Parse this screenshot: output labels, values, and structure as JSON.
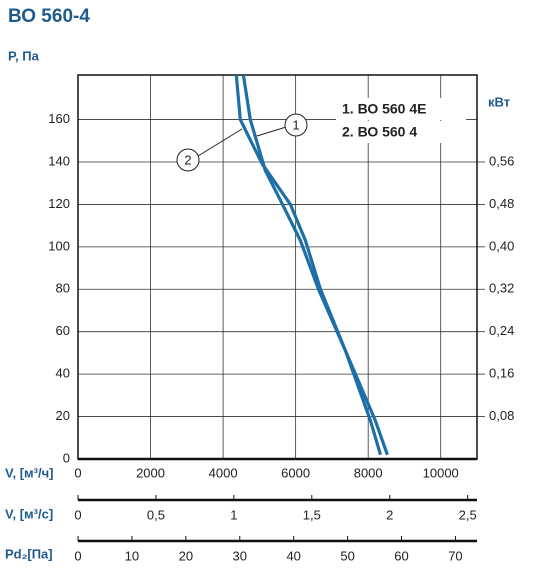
{
  "chart_data": {
    "type": "line",
    "title": "ВО 560-4",
    "ylabel": "P, Па",
    "y2label": "кВт",
    "xlabel": "V, [м³/ч]",
    "x2label": "V, [м³/с]",
    "x3label": "Pd₂[Па]",
    "annotations": [
      "1",
      "2"
    ],
    "xlim": [
      0,
      11000
    ],
    "xticks": [
      0,
      2000,
      4000,
      6000,
      8000,
      10000
    ],
    "ylim": [
      0,
      181
    ],
    "yticks": [
      0,
      20,
      40,
      60,
      80,
      100,
      120,
      140,
      160
    ],
    "y2lim": [
      0,
      0.724
    ],
    "y2ticks": [
      {
        "value": 0.08,
        "label": "0,08"
      },
      {
        "value": 0.16,
        "label": "0,16"
      },
      {
        "value": 0.24,
        "label": "0,24"
      },
      {
        "value": 0.32,
        "label": "0,32"
      },
      {
        "value": 0.4,
        "label": "0,40"
      },
      {
        "value": 0.48,
        "label": "0,48"
      },
      {
        "value": 0.56,
        "label": "0,56"
      }
    ],
    "x2lim": [
      0,
      2.56
    ],
    "x2ticks": [
      0,
      {
        "value": 0.5,
        "label": "0,5"
      },
      1,
      {
        "value": 1.5,
        "label": "1,5"
      },
      2,
      {
        "value": 2.5,
        "label": "2,5"
      }
    ],
    "x3lim": [
      0,
      74
    ],
    "x3ticks": [
      0,
      10,
      20,
      30,
      40,
      50,
      60,
      70
    ],
    "grid": true,
    "series": [
      {
        "name": "1. ВО 560 4Е",
        "color": "#1d6fa8",
        "x": [
          4560,
          4750,
          5165,
          5580,
          6130,
          6630,
          7375,
          8200,
          8530
        ],
        "values": [
          181,
          160,
          136,
          122,
          103,
          80,
          51,
          18,
          2
        ]
      },
      {
        "name": "2. ВО 560 4",
        "color": "#1d6fa8",
        "x": [
          4365,
          4475,
          5080,
          5855,
          6270,
          6685,
          7375,
          8065,
          8340
        ],
        "values": [
          181,
          160,
          139,
          120,
          103,
          80,
          51,
          18,
          2
        ]
      }
    ]
  }
}
